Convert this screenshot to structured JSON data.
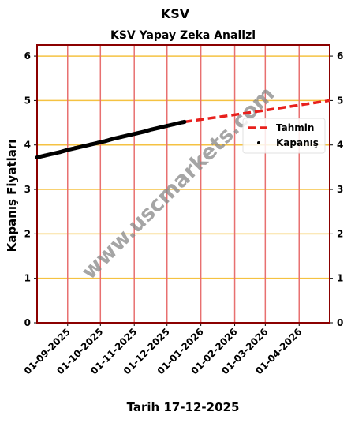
{
  "chart_data": {
    "type": "line",
    "suptitle": "KSV",
    "title": "KSV Yapay Zeka Analizi",
    "ylabel": "Kapanış Fiyatları",
    "xlabel": "Tarih 17-12-2025",
    "watermark": "www.uscmarkets.com",
    "xlim": [
      "2025-08-04",
      "2026-04-29"
    ],
    "xticks": [
      {
        "value": "2025-09-01",
        "label": "01-09-2025"
      },
      {
        "value": "2025-10-01",
        "label": "01-10-2025"
      },
      {
        "value": "2025-11-01",
        "label": "01-11-2025"
      },
      {
        "value": "2025-12-01",
        "label": "01-12-2025"
      },
      {
        "value": "2026-01-01",
        "label": "01-01-2026"
      },
      {
        "value": "2026-02-01",
        "label": "01-02-2026"
      },
      {
        "value": "2026-03-01",
        "label": "01-03-2026"
      },
      {
        "value": "2026-04-01",
        "label": "01-04-2026"
      }
    ],
    "ylim": [
      0,
      6.25
    ],
    "yticks": [
      0,
      1,
      2,
      3,
      4,
      5,
      6
    ],
    "grid": true,
    "legend": "right",
    "series": [
      {
        "name": "Tahmin",
        "color": "#e8201c",
        "line_style": "dashed",
        "x": [
          "2025-12-17",
          "2026-02-15",
          "2026-04-29"
        ],
        "values": [
          4.52,
          4.73,
          5.0
        ]
      },
      {
        "name": "Kapanış",
        "color": "#000000",
        "line_style": "none",
        "x": [
          "2025-08-04",
          "2025-08-11",
          "2025-08-18",
          "2025-08-25",
          "2025-09-01",
          "2025-09-08",
          "2025-09-15",
          "2025-09-22",
          "2025-09-29",
          "2025-10-06",
          "2025-10-13",
          "2025-10-20",
          "2025-10-27",
          "2025-11-03",
          "2025-11-10",
          "2025-11-17",
          "2025-11-24",
          "2025-12-01",
          "2025-12-08",
          "2025-12-15",
          "2025-12-17"
        ],
        "values": [
          3.72,
          3.76,
          3.8,
          3.84,
          3.89,
          3.93,
          3.97,
          4.01,
          4.05,
          4.09,
          4.14,
          4.18,
          4.22,
          4.26,
          4.3,
          4.35,
          4.39,
          4.43,
          4.47,
          4.51,
          4.52
        ]
      }
    ]
  }
}
